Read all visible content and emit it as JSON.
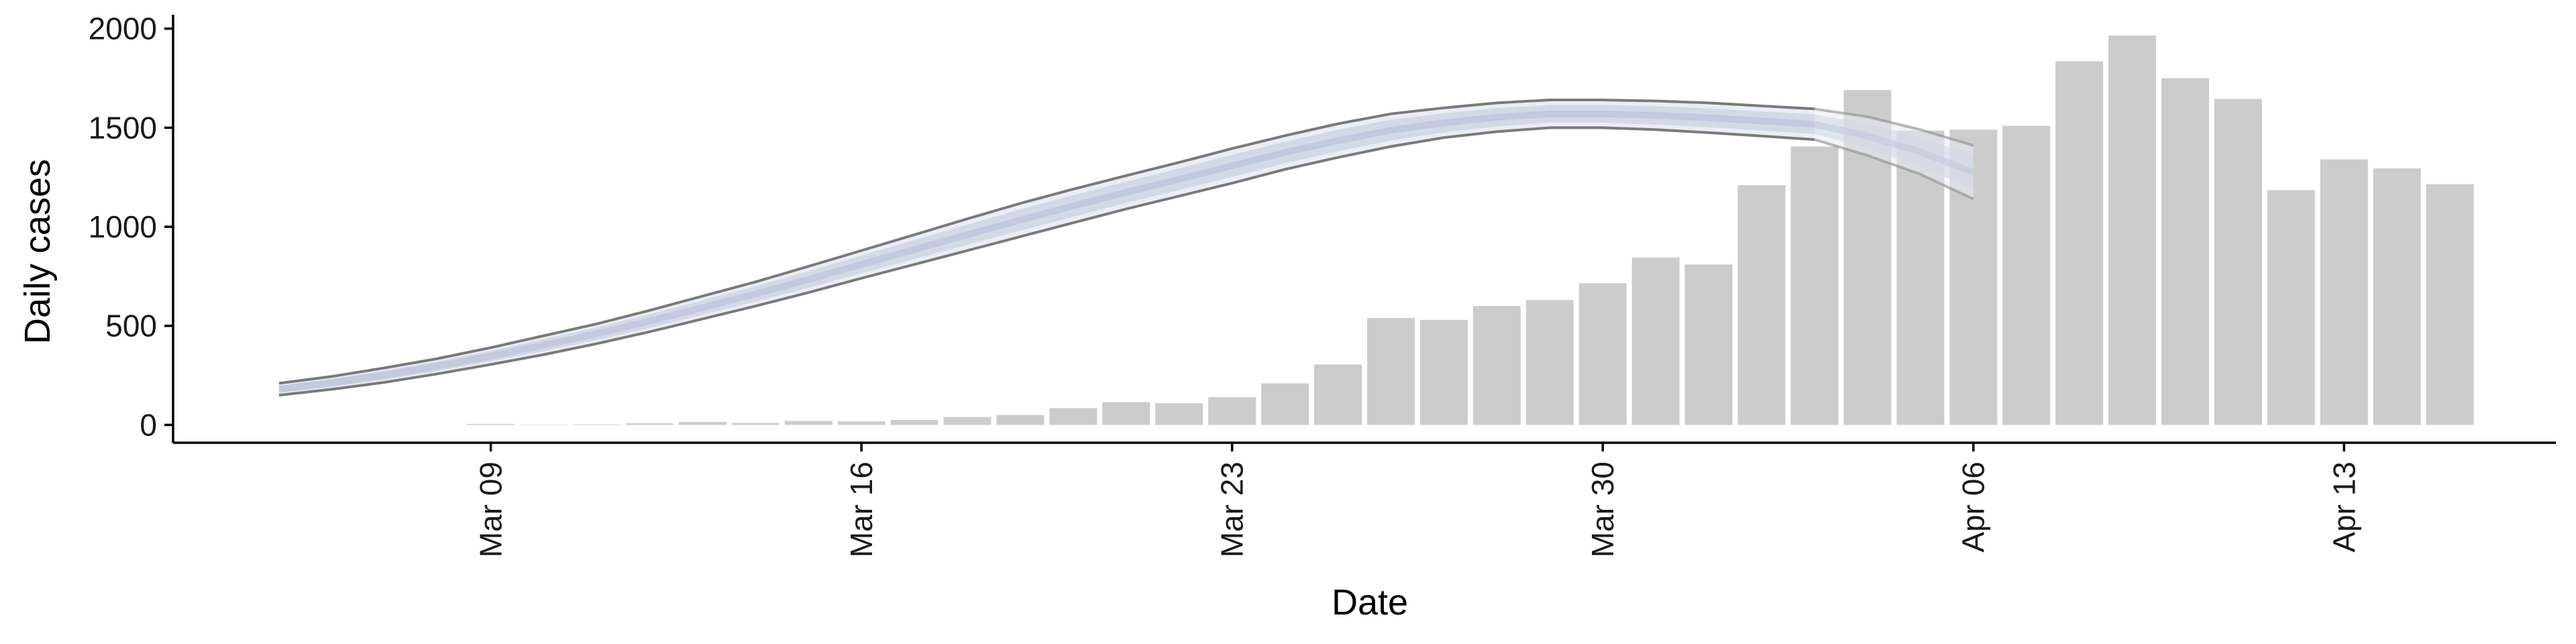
{
  "chart_data": {
    "type": "bar",
    "xlabel": "Date",
    "ylabel": "Daily cases",
    "ylim": [
      -90,
      2070
    ],
    "yticks": [
      0,
      500,
      1000,
      1500,
      2000
    ],
    "xlim": [
      "2020-03-03",
      "2020-04-17"
    ],
    "xticks": [
      {
        "date": "2020-03-09",
        "label": "Mar 09"
      },
      {
        "date": "2020-03-16",
        "label": "Mar 16"
      },
      {
        "date": "2020-03-23",
        "label": "Mar 23"
      },
      {
        "date": "2020-03-30",
        "label": "Mar 30"
      },
      {
        "date": "2020-04-06",
        "label": "Apr 06"
      },
      {
        "date": "2020-04-13",
        "label": "Apr 13"
      }
    ],
    "grid": false,
    "legend": "none",
    "bar_color": "#cccccc",
    "bars": {
      "name": "",
      "dates": [
        "2020-03-09",
        "2020-03-10",
        "2020-03-11",
        "2020-03-12",
        "2020-03-13",
        "2020-03-14",
        "2020-03-15",
        "2020-03-16",
        "2020-03-17",
        "2020-03-18",
        "2020-03-19",
        "2020-03-20",
        "2020-03-21",
        "2020-03-22",
        "2020-03-23",
        "2020-03-24",
        "2020-03-25",
        "2020-03-26",
        "2020-03-27",
        "2020-03-28",
        "2020-03-29",
        "2020-03-30",
        "2020-03-31",
        "2020-04-01",
        "2020-04-02",
        "2020-04-03",
        "2020-04-04",
        "2020-04-05",
        "2020-04-06",
        "2020-04-07",
        "2020-04-08",
        "2020-04-09",
        "2020-04-10",
        "2020-04-11",
        "2020-04-12",
        "2020-04-13",
        "2020-04-14",
        "2020-04-15"
      ],
      "values": [
        5,
        0,
        3,
        8,
        15,
        10,
        20,
        18,
        25,
        40,
        50,
        85,
        115,
        110,
        140,
        210,
        305,
        540,
        530,
        600,
        630,
        715,
        845,
        810,
        1210,
        1405,
        1690,
        1485,
        1490,
        1510,
        1835,
        1965,
        1750,
        1645,
        1185,
        1340,
        1295,
        1215
      ]
    },
    "series": [
      {
        "kind": "band",
        "segment": "fit",
        "color": "#7a7a7a",
        "dates": [
          "2020-03-05",
          "2020-03-06",
          "2020-03-07",
          "2020-03-08",
          "2020-03-09",
          "2020-03-10",
          "2020-03-11",
          "2020-03-12",
          "2020-03-13",
          "2020-03-14",
          "2020-03-15",
          "2020-03-16",
          "2020-03-17",
          "2020-03-18",
          "2020-03-19",
          "2020-03-20",
          "2020-03-21",
          "2020-03-22",
          "2020-03-23",
          "2020-03-24",
          "2020-03-25",
          "2020-03-26",
          "2020-03-27",
          "2020-03-28",
          "2020-03-29",
          "2020-03-30",
          "2020-03-31",
          "2020-04-01",
          "2020-04-02",
          "2020-04-03"
        ],
        "upper": [
          210,
          245,
          288,
          335,
          390,
          450,
          510,
          578,
          650,
          722,
          800,
          880,
          960,
          1040,
          1118,
          1190,
          1258,
          1325,
          1395,
          1460,
          1520,
          1570,
          1600,
          1625,
          1640,
          1640,
          1635,
          1625,
          1610,
          1595
        ],
        "lower": [
          150,
          180,
          215,
          258,
          305,
          355,
          410,
          470,
          535,
          600,
          668,
          740,
          810,
          880,
          950,
          1020,
          1090,
          1155,
          1220,
          1290,
          1350,
          1405,
          1450,
          1480,
          1500,
          1500,
          1490,
          1475,
          1458,
          1440
        ]
      },
      {
        "kind": "band",
        "segment": "forecast",
        "color": "#8c8c8c",
        "dates": [
          "2020-04-03",
          "2020-04-04",
          "2020-04-05",
          "2020-04-06"
        ],
        "upper": [
          1595,
          1555,
          1490,
          1410
        ],
        "lower": [
          1440,
          1360,
          1265,
          1140
        ]
      }
    ]
  }
}
